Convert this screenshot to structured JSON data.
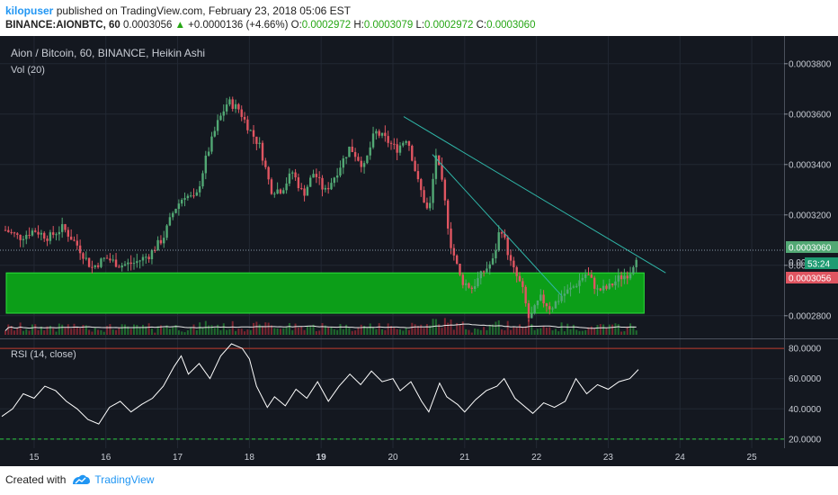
{
  "header": {
    "username": "kilopuser",
    "published_text": " published on TradingView.com, February 23, 2018 05:06 EST",
    "symbol": "BINANCE:AIONBTC, 60",
    "last_price": "0.0003056",
    "change": "+0.0000136 (+4.66%)",
    "o_label": "O:",
    "o_value": "0.0002972",
    "h_label": "H:",
    "h_value": "0.0003079",
    "l_label": "L:",
    "l_value": "0.0002972",
    "c_label": "C:",
    "c_value": "0.0003060"
  },
  "footer": {
    "created_with": "Created with",
    "brand": "TradingView"
  },
  "colors": {
    "background": "#141820",
    "up": "#52a874",
    "down": "#e05561",
    "zone": "#0c9e18",
    "trendline": "#2fb5a7",
    "grid": "#222833",
    "text": "#c8ccd4"
  },
  "chart_data": [
    {
      "type": "candlestick",
      "title": "Aion / Bitcoin, 60, BINANCE, Heikin Ashi",
      "indicator_label": "Vol (20)",
      "y_ticks": [
        "0.0002800",
        "0.0003000",
        "0.0003200",
        "0.0003400",
        "0.0003600",
        "0.0003800"
      ],
      "ylim": [
        0.000271,
        0.000391
      ],
      "x_ticks": [
        "15",
        "16",
        "17",
        "18",
        "19",
        "20",
        "21",
        "22",
        "23",
        "24",
        "25"
      ],
      "current_price_label": "0.0003060",
      "countdown_label": "53:24",
      "bid_label": "0.0003056",
      "hidden_tick_label": "0.00",
      "support_zone": {
        "low": 0.000281,
        "high": 0.000297
      },
      "trendlines": [
        {
          "from": [
            20.15,
            0.000359
          ],
          "to": [
            23.8,
            0.000297
          ]
        },
        {
          "from": [
            20.55,
            0.000344
          ],
          "to": [
            22.35,
            0.000288
          ]
        }
      ],
      "close_series": [
        [
          14.6,
          0.000314
        ],
        [
          14.8,
          0.000311
        ],
        [
          15.0,
          0.000314
        ],
        [
          15.2,
          0.000311
        ],
        [
          15.4,
          0.000315
        ],
        [
          15.6,
          0.000308
        ],
        [
          15.8,
          0.000299
        ],
        [
          16.0,
          0.000303
        ],
        [
          16.2,
          0.0003
        ],
        [
          16.4,
          0.000301
        ],
        [
          16.6,
          0.000304
        ],
        [
          16.8,
          0.000311
        ],
        [
          16.95,
          0.000322
        ],
        [
          17.1,
          0.000328
        ],
        [
          17.25,
          0.000326
        ],
        [
          17.4,
          0.000343
        ],
        [
          17.55,
          0.000356
        ],
        [
          17.7,
          0.000365
        ],
        [
          17.85,
          0.000362
        ],
        [
          18.0,
          0.000354
        ],
        [
          18.15,
          0.000347
        ],
        [
          18.3,
          0.00033
        ],
        [
          18.45,
          0.00033
        ],
        [
          18.6,
          0.000337
        ],
        [
          18.75,
          0.000328
        ],
        [
          18.9,
          0.000337
        ],
        [
          19.05,
          0.000329
        ],
        [
          19.2,
          0.000336
        ],
        [
          19.4,
          0.000347
        ],
        [
          19.6,
          0.000339
        ],
        [
          19.75,
          0.000353
        ],
        [
          19.9,
          0.00035
        ],
        [
          20.05,
          0.000346
        ],
        [
          20.2,
          0.000351
        ],
        [
          20.35,
          0.000333
        ],
        [
          20.5,
          0.00032
        ],
        [
          20.6,
          0.000344
        ],
        [
          20.7,
          0.00033
        ],
        [
          20.8,
          0.000309
        ],
        [
          20.95,
          0.000294
        ],
        [
          21.1,
          0.000291
        ],
        [
          21.25,
          0.000297
        ],
        [
          21.4,
          0.000302
        ],
        [
          21.5,
          0.000316
        ],
        [
          21.65,
          0.0003
        ],
        [
          21.8,
          0.000291
        ],
        [
          21.9,
          0.000278
        ],
        [
          22.05,
          0.000287
        ],
        [
          22.2,
          0.000283
        ],
        [
          22.35,
          0.000288
        ],
        [
          22.5,
          0.000291
        ],
        [
          22.7,
          0.000297
        ],
        [
          22.85,
          0.00029
        ],
        [
          23.0,
          0.000291
        ],
        [
          23.15,
          0.000295
        ],
        [
          23.3,
          0.000297
        ],
        [
          23.42,
          0.000306
        ]
      ]
    },
    {
      "type": "line",
      "title": "RSI (14, close)",
      "y_ticks": [
        "20.0000",
        "40.0000",
        "60.0000",
        "80.0000"
      ],
      "ylim": [
        14,
        86
      ],
      "levels": [
        80,
        20
      ],
      "series": [
        {
          "values": [
            [
              14.55,
              35
            ],
            [
              14.7,
              40
            ],
            [
              14.85,
              50
            ],
            [
              15.0,
              47
            ],
            [
              15.15,
              55
            ],
            [
              15.3,
              52
            ],
            [
              15.45,
              45
            ],
            [
              15.6,
              40
            ],
            [
              15.75,
              33
            ],
            [
              15.9,
              30
            ],
            [
              16.05,
              41
            ],
            [
              16.2,
              45
            ],
            [
              16.35,
              38
            ],
            [
              16.5,
              43
            ],
            [
              16.65,
              47
            ],
            [
              16.8,
              55
            ],
            [
              16.95,
              68
            ],
            [
              17.05,
              75
            ],
            [
              17.15,
              63
            ],
            [
              17.3,
              70
            ],
            [
              17.45,
              60
            ],
            [
              17.6,
              75
            ],
            [
              17.75,
              83
            ],
            [
              17.9,
              80
            ],
            [
              18.0,
              73
            ],
            [
              18.1,
              55
            ],
            [
              18.25,
              41
            ],
            [
              18.35,
              48
            ],
            [
              18.5,
              42
            ],
            [
              18.65,
              53
            ],
            [
              18.8,
              47
            ],
            [
              18.95,
              58
            ],
            [
              19.1,
              45
            ],
            [
              19.25,
              55
            ],
            [
              19.4,
              63
            ],
            [
              19.55,
              56
            ],
            [
              19.7,
              65
            ],
            [
              19.85,
              58
            ],
            [
              20.0,
              60
            ],
            [
              20.1,
              52
            ],
            [
              20.25,
              58
            ],
            [
              20.4,
              45
            ],
            [
              20.5,
              38
            ],
            [
              20.65,
              57
            ],
            [
              20.75,
              48
            ],
            [
              20.9,
              43
            ],
            [
              21.0,
              38
            ],
            [
              21.15,
              46
            ],
            [
              21.3,
              52
            ],
            [
              21.45,
              55
            ],
            [
              21.55,
              60
            ],
            [
              21.7,
              47
            ],
            [
              21.8,
              43
            ],
            [
              21.95,
              37
            ],
            [
              22.1,
              44
            ],
            [
              22.25,
              41
            ],
            [
              22.4,
              45
            ],
            [
              22.55,
              60
            ],
            [
              22.7,
              50
            ],
            [
              22.85,
              56
            ],
            [
              23.0,
              53
            ],
            [
              23.15,
              58
            ],
            [
              23.3,
              60
            ],
            [
              23.42,
              66
            ]
          ]
        }
      ]
    }
  ]
}
